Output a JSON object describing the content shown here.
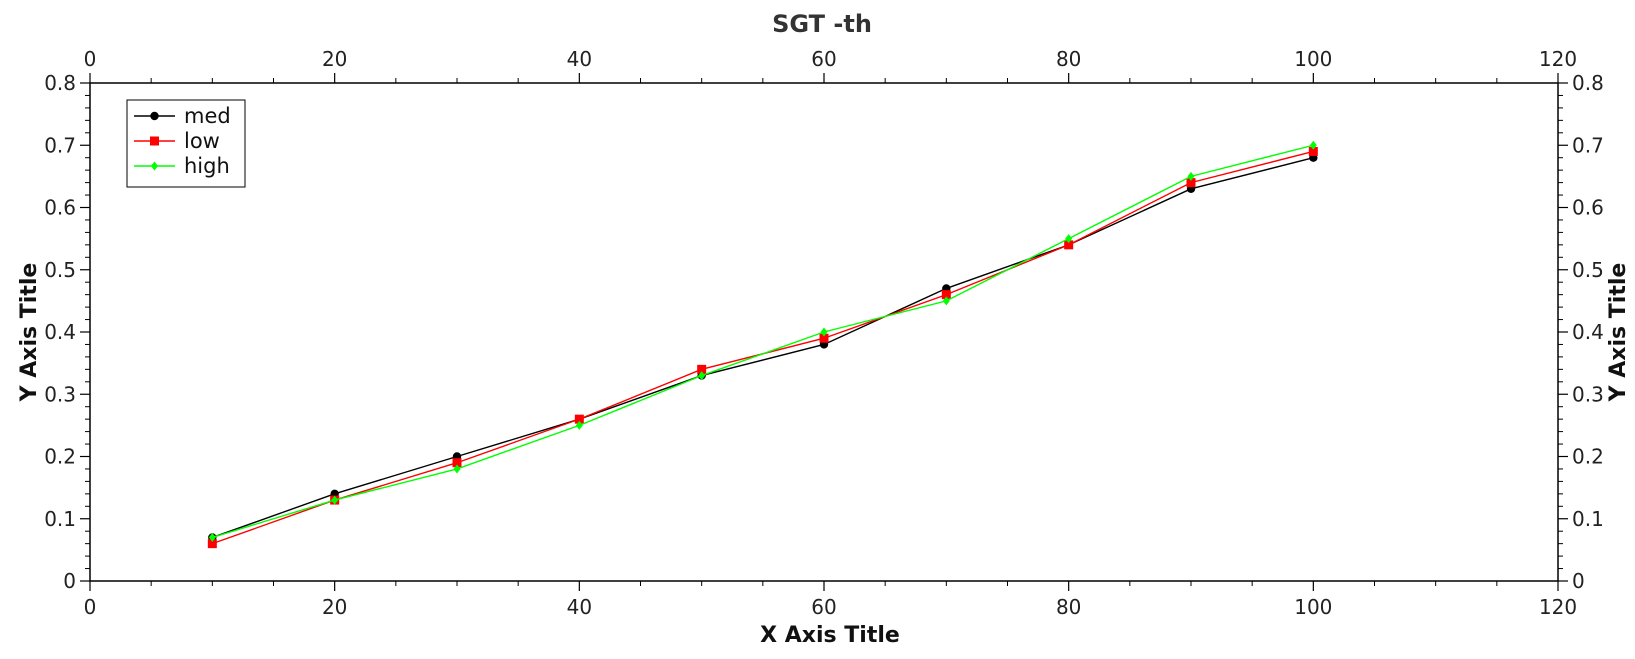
{
  "chart_data": {
    "type": "line",
    "title": "SGT -th",
    "xlabel": "X Axis Title",
    "ylabel": "Y Axis Title",
    "ylabel_right": "Y Axis Title",
    "xlim": [
      0,
      120
    ],
    "ylim": [
      0,
      0.8
    ],
    "x_ticks": [
      "0",
      "20",
      "40",
      "60",
      "80",
      "100",
      "120"
    ],
    "y_ticks": [
      "0",
      "0.1",
      "0.2",
      "0.3",
      "0.4",
      "0.5",
      "0.6",
      "0.7",
      "0.8"
    ],
    "grid": false,
    "legend_position": "top-left",
    "x": [
      10,
      20,
      30,
      40,
      50,
      60,
      70,
      80,
      90,
      100
    ],
    "series": [
      {
        "name": "med",
        "color": "#000000",
        "marker": "circle",
        "values": [
          0.07,
          0.14,
          0.2,
          0.26,
          0.33,
          0.38,
          0.47,
          0.54,
          0.63,
          0.68
        ]
      },
      {
        "name": "low",
        "color": "#ff0000",
        "marker": "square",
        "values": [
          0.06,
          0.13,
          0.19,
          0.26,
          0.34,
          0.39,
          0.46,
          0.54,
          0.64,
          0.69
        ]
      },
      {
        "name": "high",
        "color": "#00ff00",
        "marker": "diamond",
        "values": [
          0.07,
          0.13,
          0.18,
          0.25,
          0.33,
          0.4,
          0.45,
          0.55,
          0.65,
          0.7
        ]
      }
    ]
  }
}
